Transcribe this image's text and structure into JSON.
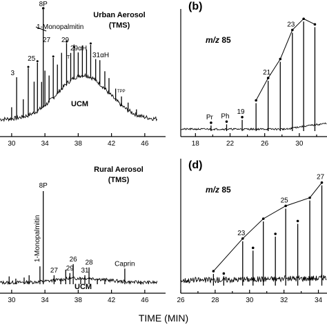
{
  "x_axis_label": "TIME (MIN)",
  "chart_data": [
    {
      "panel": "a",
      "type": "line",
      "panel_letter": "",
      "title_line1": "Urban Aerosol",
      "title_line2": "(TMS)",
      "xlim": [
        28.6,
        48.5
      ],
      "x_ticks": [
        30,
        34,
        38,
        42,
        46
      ],
      "baseline_peaks": [
        {
          "x": 30.0,
          "h": 0.1
        },
        {
          "x": 30.6,
          "h": 0.34,
          "label": "3"
        },
        {
          "x": 31.4,
          "h": 0.15
        },
        {
          "x": 32.0,
          "h": 0.39
        },
        {
          "x": 32.7,
          "h": 0.26
        },
        {
          "x": 33.1,
          "h": 0.4,
          "label": "25"
        },
        {
          "x": 33.6,
          "h": 0.22
        },
        {
          "x": 34.0,
          "h": 0.29
        },
        {
          "x": 34.5,
          "h": 0.22
        },
        {
          "x": 35.0,
          "h": 0.33
        },
        {
          "x": 35.5,
          "h": 0.24
        },
        {
          "x": 36.0,
          "h": 0.3
        },
        {
          "x": 36.6,
          "h": 0.34
        },
        {
          "x": 37.1,
          "h": 0.23
        },
        {
          "x": 37.5,
          "h": 0.28
        },
        {
          "x": 38.0,
          "h": 0.2
        },
        {
          "x": 38.5,
          "h": 0.25
        },
        {
          "x": 39.0,
          "h": 0.22
        },
        {
          "x": 39.5,
          "h": 0.27
        },
        {
          "x": 40.1,
          "h": 0.18
        },
        {
          "x": 40.6,
          "h": 0.2
        },
        {
          "x": 41.2,
          "h": 0.15
        },
        {
          "x": 41.7,
          "h": 0.13
        },
        {
          "x": 42.5,
          "h": 0.1
        },
        {
          "x": 43.2,
          "h": 0.08
        },
        {
          "x": 44.0,
          "h": 0.07
        },
        {
          "x": 45.0,
          "h": 0.05
        }
      ],
      "tall_peak": {
        "x": 33.8,
        "label": "8P"
      },
      "compound_labels": [
        "1-Monopalmitin",
        "27",
        "29",
        "29αH",
        "31αH",
        "TPP",
        "UCM",
        "T"
      ]
    },
    {
      "panel": "b",
      "type": "line",
      "panel_letter": "(b)",
      "mz_label": "m/z 85",
      "xlim": [
        16.3,
        33.2
      ],
      "x_ticks": [
        18,
        22,
        26,
        30
      ],
      "x_tick_extra": [
        20,
        24,
        28,
        32
      ],
      "alkanes": [
        {
          "x": 19.8,
          "h": 0.05,
          "label": "Pr"
        },
        {
          "x": 21.6,
          "h": 0.06,
          "label": "Ph"
        },
        {
          "x": 23.4,
          "h": 0.1,
          "label": "19"
        },
        {
          "x": 25.0,
          "h": 0.25
        },
        {
          "x": 26.4,
          "h": 0.45,
          "label": "21"
        },
        {
          "x": 27.8,
          "h": 0.62
        },
        {
          "x": 29.2,
          "h": 0.88,
          "label": "23"
        },
        {
          "x": 30.5,
          "h": 0.98
        },
        {
          "x": 31.8,
          "h": 0.93
        }
      ]
    },
    {
      "panel": "c",
      "type": "line",
      "panel_letter": "",
      "title_line1": "Rural Aerosol",
      "title_line2": "(TMS)",
      "xlim": [
        28.6,
        48.5
      ],
      "x_ticks": [
        30,
        34,
        38,
        42,
        46
      ],
      "baseline_peaks": [
        {
          "x": 29.7,
          "h": 0.07
        },
        {
          "x": 30.5,
          "h": 0.05
        },
        {
          "x": 31.5,
          "h": 0.06
        },
        {
          "x": 32.1,
          "h": 0.08
        },
        {
          "x": 33.4,
          "h": 0.16
        },
        {
          "x": 35.1,
          "h": 0.08,
          "label": "27"
        },
        {
          "x": 35.9,
          "h": 0.04
        },
        {
          "x": 36.5,
          "h": 0.13
        },
        {
          "x": 37.0,
          "h": 0.1,
          "label": "29"
        },
        {
          "x": 37.4,
          "h": 0.18,
          "label": "26"
        },
        {
          "x": 38.3,
          "h": 0.06
        },
        {
          "x": 38.8,
          "h": 0.08,
          "label": "31"
        },
        {
          "x": 39.3,
          "h": 0.15,
          "label": "28"
        },
        {
          "x": 40.3,
          "h": 0.05
        },
        {
          "x": 41.2,
          "h": 0.04
        },
        {
          "x": 43.6,
          "h": 0.14,
          "label": "Caprin"
        },
        {
          "x": 45.5,
          "h": 0.03
        }
      ],
      "tall_peak": {
        "x": 33.8,
        "label": "8P"
      },
      "compound_labels": [
        "1-Monopalmitin",
        "UCM"
      ]
    },
    {
      "panel": "d",
      "type": "line",
      "panel_letter": "(d)",
      "mz_label": "m/z 85",
      "xlim": [
        26.0,
        34.5
      ],
      "x_ticks": [
        26,
        28,
        30,
        32,
        34
      ],
      "x_tick_extra": [
        27,
        29,
        31,
        33
      ],
      "alkanes": [
        {
          "x": 27.9,
          "h": 0.1
        },
        {
          "x": 28.5,
          "h": 0.08
        },
        {
          "x": 29.6,
          "h": 0.38,
          "label": "23"
        },
        {
          "x": 30.2,
          "h": 0.3
        },
        {
          "x": 30.8,
          "h": 0.55
        },
        {
          "x": 31.5,
          "h": 0.42
        },
        {
          "x": 32.1,
          "h": 0.66,
          "label": "25"
        },
        {
          "x": 32.8,
          "h": 0.53
        },
        {
          "x": 33.5,
          "h": 0.73
        },
        {
          "x": 34.2,
          "h": 0.86,
          "label": "27"
        }
      ]
    }
  ]
}
